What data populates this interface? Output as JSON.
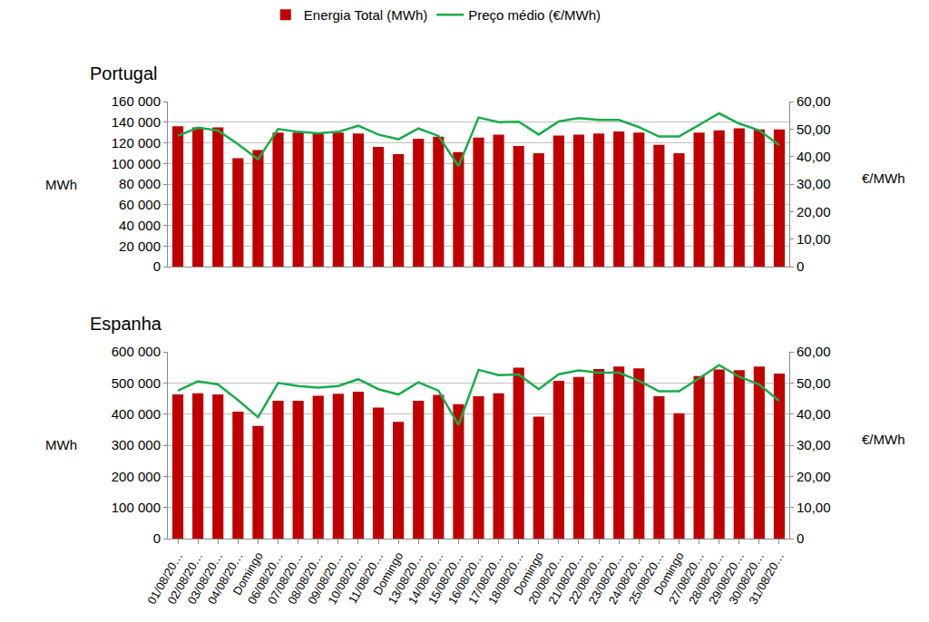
{
  "chart_data": [
    {
      "type": "bar",
      "title": "Portugal",
      "legend": "top",
      "grid": true,
      "y_label": "MWh",
      "y2_label": "€/MWh",
      "categories": [
        null,
        null,
        null,
        null,
        null,
        null,
        null,
        null,
        null,
        null,
        null,
        null,
        null,
        null,
        null,
        null,
        null,
        null,
        null,
        null,
        null,
        null,
        null,
        null,
        null,
        null,
        null,
        null,
        null,
        null,
        null
      ],
      "series": [
        {
          "name": "Energia Total (MWh)",
          "type": "bar",
          "color": "#c00000",
          "values": [
            136000,
            135000,
            135000,
            105000,
            113000,
            130000,
            130000,
            129000,
            130000,
            129000,
            116000,
            109000,
            124000,
            126000,
            111000,
            125000,
            128000,
            117000,
            110000,
            127000,
            128000,
            129000,
            131000,
            130000,
            118000,
            110000,
            130000,
            132000,
            134000,
            133000,
            133000
          ]
        },
        {
          "name": "Preço médio (€/MWh)",
          "type": "line",
          "axis": "y2",
          "color": "#1aab4b",
          "values": [
            47.5,
            50.5,
            49.5,
            44.5,
            39.0,
            50.0,
            49.0,
            48.5,
            49.0,
            51.2,
            48.0,
            46.3,
            50.2,
            47.5,
            36.5,
            54.2,
            52.5,
            52.7,
            48.0,
            52.8,
            54.0,
            53.3,
            53.3,
            50.7,
            47.3,
            47.3,
            51.5,
            55.7,
            52.0,
            49.5,
            44.2
          ]
        }
      ],
      "ylim": [
        0,
        160000
      ],
      "yticks": [
        0,
        {
          "value": 20000,
          "label": "20 000"
        },
        {
          "value": 40000,
          "label": "40 000"
        },
        {
          "value": 60000,
          "label": "60 000"
        },
        {
          "value": 80000,
          "label": "80 000"
        },
        {
          "value": 100000,
          "label": "100 000"
        },
        {
          "value": 120000,
          "label": "120 000"
        },
        {
          "value": 140000,
          "label": "140 000"
        },
        {
          "value": 160000,
          "label": "160 000"
        }
      ],
      "y2lim": [
        0,
        60
      ],
      "y2ticks": [
        0,
        {
          "value": 10,
          "label": "10,00"
        },
        {
          "value": 20,
          "label": "20,00"
        },
        {
          "value": 30,
          "label": "30,00"
        },
        {
          "value": 40,
          "label": "40,00"
        },
        {
          "value": 50,
          "label": "50,00"
        },
        {
          "value": 60,
          "label": "60,00"
        }
      ]
    },
    {
      "type": "bar",
      "title": "Espanha",
      "grid": true,
      "y_label": "MWh",
      "y2_label": "€/MWh",
      "categories": [
        "01/08/20…",
        "02/08/20…",
        "03/08/20…",
        "04/08/20…",
        "Domingo",
        "06/08/20…",
        "07/08/20…",
        "08/08/20…",
        "09/08/20…",
        "10/08/20…",
        "11/08/20…",
        "Domingo",
        "13/08/20…",
        "14/08/20…",
        "15/08/20…",
        "16/08/20…",
        "17/08/20…",
        "18/08/20…",
        "Domingo",
        "20/08/20…",
        "21/08/20…",
        "22/08/20…",
        "23/08/20…",
        "24/08/20…",
        "25/08/20…",
        "Domingo",
        "27/08/20…",
        "28/08/20…",
        "29/08/20…",
        "30/08/20…",
        "31/08/20…"
      ],
      "series": [
        {
          "name": "Energia Total (MWh)",
          "type": "bar",
          "color": "#c00000",
          "values": [
            463000,
            467000,
            463000,
            408000,
            362000,
            443000,
            443000,
            459000,
            465000,
            472000,
            421000,
            375000,
            443000,
            462000,
            432000,
            457000,
            467000,
            549000,
            392000,
            507000,
            519000,
            545000,
            553000,
            547000,
            457000,
            403000,
            522000,
            543000,
            541000,
            553000,
            530000
          ]
        },
        {
          "name": "Preço médio (€/MWh)",
          "type": "line",
          "axis": "y2",
          "color": "#1aab4b",
          "values": [
            47.5,
            50.5,
            49.5,
            44.5,
            39.0,
            50.0,
            49.0,
            48.5,
            49.0,
            51.2,
            48.0,
            46.3,
            50.2,
            47.5,
            36.5,
            54.2,
            52.5,
            52.7,
            48.0,
            52.8,
            54.0,
            53.3,
            53.3,
            50.7,
            47.3,
            47.3,
            51.5,
            55.7,
            52.0,
            49.5,
            44.2
          ]
        }
      ],
      "ylim": [
        0,
        600000
      ],
      "yticks": [
        0,
        {
          "value": 100000,
          "label": "100 000"
        },
        {
          "value": 200000,
          "label": "200 000"
        },
        {
          "value": 300000,
          "label": "300 000"
        },
        {
          "value": 400000,
          "label": "400 000"
        },
        {
          "value": 500000,
          "label": "500 000"
        },
        {
          "value": 600000,
          "label": "600 000"
        }
      ],
      "y2lim": [
        0,
        60
      ],
      "y2ticks": [
        0,
        {
          "value": 10,
          "label": "10,00"
        },
        {
          "value": 20,
          "label": "20,00"
        },
        {
          "value": 30,
          "label": "30,00"
        },
        {
          "value": 40,
          "label": "40,00"
        },
        {
          "value": 50,
          "label": "50,00"
        },
        {
          "value": 60,
          "label": "60,00"
        }
      ]
    }
  ]
}
